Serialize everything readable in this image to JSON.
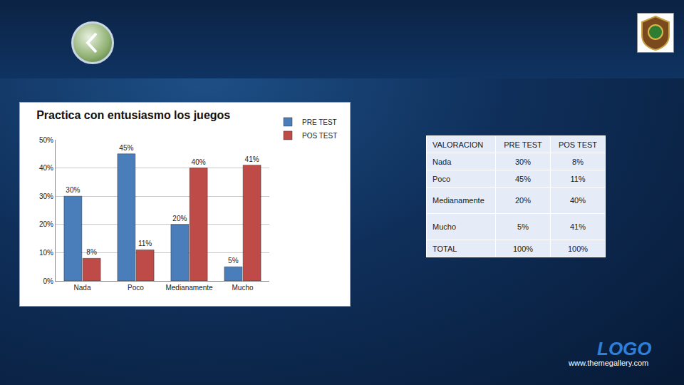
{
  "chart_data": {
    "type": "bar",
    "title": "Practica con entusiasmo los juegos",
    "categories": [
      "Nada",
      "Poco",
      "Medianamente",
      "Mucho"
    ],
    "series": [
      {
        "name": "PRE TEST",
        "color": "#4a7ebb",
        "values": [
          30,
          45,
          20,
          5
        ],
        "value_labels": [
          "30%",
          "45%",
          "20%",
          "5%"
        ]
      },
      {
        "name": "POS TEST",
        "color": "#be4b48",
        "values": [
          8,
          11,
          40,
          41
        ],
        "value_labels": [
          "8%",
          "11%",
          "40%",
          "41%"
        ]
      }
    ],
    "ylim": [
      0,
      50
    ],
    "yticks": [
      {
        "value": 0,
        "label": "0%"
      },
      {
        "value": 10,
        "label": "10%"
      },
      {
        "value": 20,
        "label": "20%"
      },
      {
        "value": 30,
        "label": "30%"
      },
      {
        "value": 40,
        "label": "40%"
      },
      {
        "value": 50,
        "label": "50%"
      }
    ],
    "grid": true,
    "data_labels": true,
    "legend": "top right"
  },
  "table": {
    "header": [
      "VALORACION",
      "PRE TEST",
      "POS TEST"
    ],
    "rows": [
      [
        "Nada",
        "30%",
        "8%"
      ],
      [
        "Poco",
        "45%",
        "11%"
      ],
      [
        "Medianamente",
        "20%",
        "40%"
      ],
      [
        "Mucho",
        "5%",
        "41%"
      ],
      [
        "TOTAL",
        "100%",
        "100%"
      ]
    ]
  },
  "footer": {
    "logo": "LOGO",
    "url": "www.themegallery.com"
  }
}
